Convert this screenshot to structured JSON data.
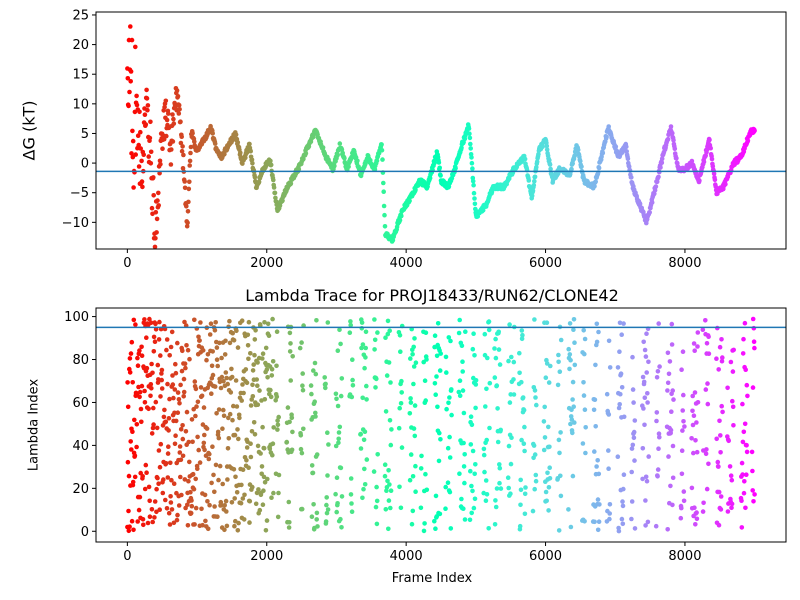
{
  "chart_data": [
    {
      "type": "scatter",
      "title": "",
      "xlabel": "",
      "ylabel": "ΔG (kT)",
      "xlim": [
        -450,
        9450
      ],
      "ylim": [
        -14.5,
        25.5
      ],
      "xticks": [
        0,
        2000,
        4000,
        6000,
        8000
      ],
      "xtick_labels": [
        "0",
        "2000",
        "4000",
        "6000",
        "8000"
      ],
      "yticks": [
        -10,
        -5,
        0,
        5,
        10,
        15,
        20,
        25
      ],
      "ytick_labels": [
        "−10",
        "−5",
        "0",
        "5",
        "10",
        "15",
        "20",
        "25"
      ],
      "hline": -1.4,
      "hline_color": "#1f77b4",
      "colormap": "rainbow",
      "color_by": "frame (red at start → purple at end)",
      "trace_keypoints": [
        [
          0,
          20
        ],
        [
          30,
          12
        ],
        [
          60,
          5
        ],
        [
          100,
          -5
        ],
        [
          150,
          8
        ],
        [
          200,
          -3
        ],
        [
          260,
          10
        ],
        [
          330,
          2
        ],
        [
          400,
          -13
        ],
        [
          480,
          3
        ],
        [
          560,
          8
        ],
        [
          620,
          2
        ],
        [
          700,
          12
        ],
        [
          780,
          4
        ],
        [
          860,
          -10
        ],
        [
          920,
          5
        ],
        [
          1000,
          2
        ],
        [
          1100,
          4
        ],
        [
          1200,
          6
        ],
        [
          1280,
          2
        ],
        [
          1350,
          1
        ],
        [
          1450,
          3
        ],
        [
          1550,
          5
        ],
        [
          1650,
          0
        ],
        [
          1750,
          3
        ],
        [
          1850,
          -4
        ],
        [
          1950,
          -1
        ],
        [
          2050,
          0.5
        ],
        [
          2150,
          -8
        ],
        [
          2300,
          -4
        ],
        [
          2450,
          -1
        ],
        [
          2600,
          3
        ],
        [
          2700,
          5.5
        ],
        [
          2850,
          1
        ],
        [
          2950,
          -1
        ],
        [
          3050,
          3
        ],
        [
          3150,
          -1
        ],
        [
          3250,
          2
        ],
        [
          3350,
          -2
        ],
        [
          3450,
          1
        ],
        [
          3550,
          -1
        ],
        [
          3650,
          3.5
        ],
        [
          3700,
          -12
        ],
        [
          3800,
          -13
        ],
        [
          3950,
          -8
        ],
        [
          4050,
          -6
        ],
        [
          4200,
          -3
        ],
        [
          4300,
          -4
        ],
        [
          4450,
          2
        ],
        [
          4500,
          -3
        ],
        [
          4600,
          -4
        ],
        [
          4700,
          -1
        ],
        [
          4800,
          3
        ],
        [
          4900,
          6.5
        ],
        [
          5000,
          -9
        ],
        [
          5150,
          -7
        ],
        [
          5250,
          -4
        ],
        [
          5400,
          -4
        ],
        [
          5550,
          -1
        ],
        [
          5700,
          1
        ],
        [
          5800,
          -6
        ],
        [
          5900,
          2
        ],
        [
          6000,
          4
        ],
        [
          6100,
          -3
        ],
        [
          6200,
          -1
        ],
        [
          6350,
          -2
        ],
        [
          6450,
          3
        ],
        [
          6550,
          -3
        ],
        [
          6700,
          -4
        ],
        [
          6900,
          6
        ],
        [
          7050,
          1
        ],
        [
          7150,
          3
        ],
        [
          7250,
          -4
        ],
        [
          7350,
          -7
        ],
        [
          7450,
          -10
        ],
        [
          7600,
          -3
        ],
        [
          7700,
          2
        ],
        [
          7800,
          6
        ],
        [
          7900,
          -1
        ],
        [
          8000,
          -1
        ],
        [
          8100,
          0
        ],
        [
          8200,
          -3
        ],
        [
          8350,
          4
        ],
        [
          8450,
          -5
        ],
        [
          8550,
          -4
        ],
        [
          8700,
          0
        ],
        [
          8800,
          1
        ],
        [
          8950,
          5.5
        ]
      ]
    },
    {
      "type": "scatter",
      "title": "Lambda Trace for PROJ18433/RUN62/CLONE42",
      "xlabel": "Frame Index",
      "ylabel": "Lambda Index",
      "xlim": [
        -450,
        9450
      ],
      "ylim": [
        -5,
        104
      ],
      "xticks": [
        0,
        2000,
        4000,
        6000,
        8000
      ],
      "xtick_labels": [
        "0",
        "2000",
        "4000",
        "6000",
        "8000"
      ],
      "yticks": [
        0,
        20,
        40,
        60,
        80,
        100
      ],
      "ytick_labels": [
        "0",
        "20",
        "40",
        "60",
        "80",
        "100"
      ],
      "hline": 95,
      "hline_color": "#1f77b4",
      "colormap": "rainbow",
      "color_by": "frame (red at start → purple at end)",
      "value_range": [
        0,
        99
      ],
      "n_frames": 9000
    }
  ]
}
